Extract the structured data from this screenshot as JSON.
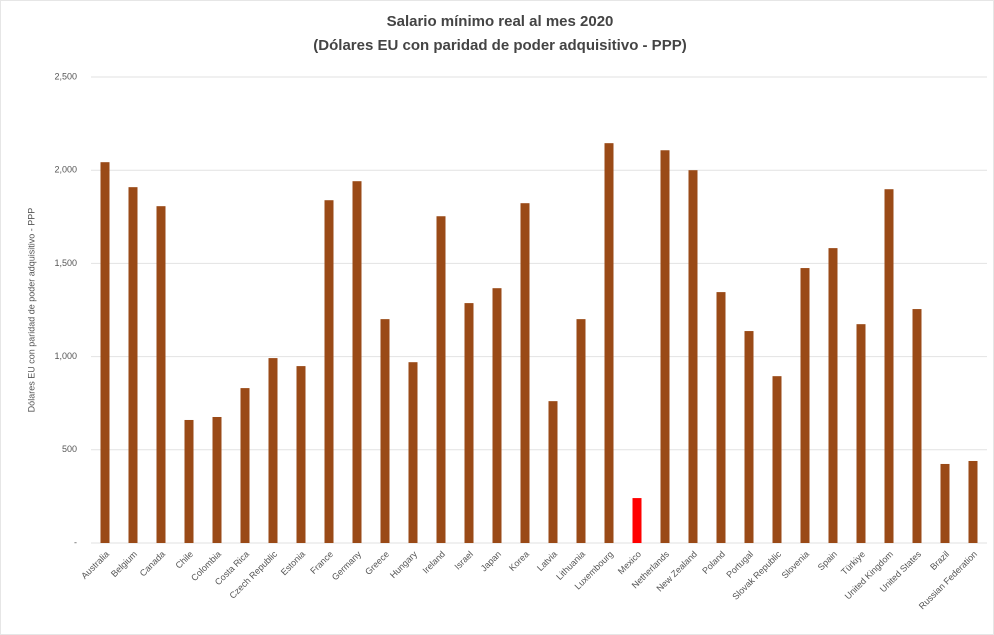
{
  "chart_data": {
    "type": "bar",
    "title": "Salario mínimo real al mes 2020",
    "subtitle": "(Dólares EU con paridad de poder adquisitivo - PPP)",
    "y_label": "Dólares EU con paridad de poder adquisitivo - PPP",
    "categories": [
      "Australia",
      "Belgium",
      "Canada",
      "Chile",
      "Colombia",
      "Costa Rica",
      "Czech Republic",
      "Estonia",
      "France",
      "Germany",
      "Greece",
      "Hungary",
      "Ireland",
      "Israel",
      "Japan",
      "Korea",
      "Latvia",
      "Lithuania",
      "Luxembourg",
      "Mexico",
      "Netherlands",
      "New Zealand",
      "Poland",
      "Portugal",
      "Slovak Republic",
      "Slovenia",
      "Spain",
      "Türkiye",
      "United Kingdom",
      "United States",
      "Brazil",
      "Russian Federation"
    ],
    "values": [
      2043,
      1909,
      1807,
      660,
      676,
      831,
      992,
      949,
      1839,
      1941,
      1201,
      970,
      1753,
      1287,
      1367,
      1823,
      761,
      1201,
      2145,
      241,
      2107,
      2000,
      1346,
      1137,
      895,
      1475,
      1582,
      1174,
      1898,
      1255,
      424,
      440
    ],
    "colors": [
      "#9a4a17",
      "#9a4a17",
      "#9a4a17",
      "#9a4a17",
      "#9a4a17",
      "#9a4a17",
      "#9a4a17",
      "#9a4a17",
      "#9a4a17",
      "#9a4a17",
      "#9a4a17",
      "#9a4a17",
      "#9a4a17",
      "#9a4a17",
      "#9a4a17",
      "#9a4a17",
      "#9a4a17",
      "#9a4a17",
      "#9a4a17",
      "#ff0000",
      "#9a4a17",
      "#9a4a17",
      "#9a4a17",
      "#9a4a17",
      "#9a4a17",
      "#9a4a17",
      "#9a4a17",
      "#9a4a17",
      "#9a4a17",
      "#9a4a17",
      "#9a4a17",
      "#9a4a17"
    ],
    "ylim": [
      0,
      2500
    ],
    "yticks": [
      {
        "value": 0,
        "label": "-"
      },
      500,
      {
        "value": 1000,
        "label": "1,000"
      },
      {
        "value": 1500,
        "label": "1,500"
      },
      {
        "value": 2000,
        "label": "2,000"
      },
      {
        "value": 2500,
        "label": "2,500"
      }
    ],
    "grid": true
  }
}
